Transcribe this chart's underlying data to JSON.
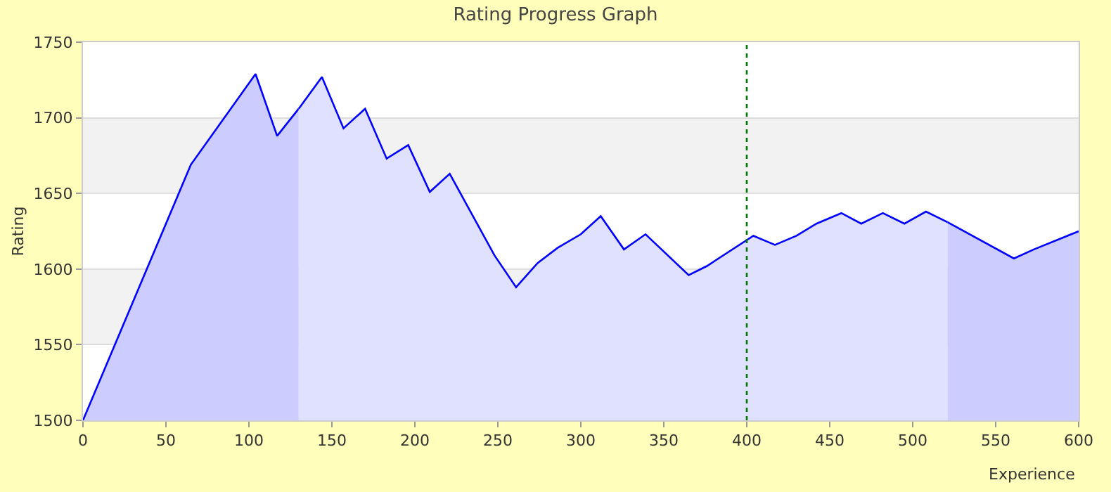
{
  "chart_data": {
    "type": "area",
    "title": "Rating Progress Graph",
    "xlabel": "Experience",
    "ylabel": "Rating",
    "series": [
      {
        "color": "#ccccff",
        "x": [
          0,
          65,
          104,
          117,
          130
        ],
        "values": [
          1500,
          1669,
          1729,
          1688,
          1706
        ]
      },
      {
        "color": "#e0e0ff",
        "x": [
          130,
          144,
          157,
          170,
          183,
          196,
          209,
          221,
          248,
          261,
          274,
          286,
          300,
          312,
          326,
          339,
          365,
          376,
          404,
          417,
          430,
          442,
          457,
          469,
          482,
          495,
          508,
          521
        ],
        "values": [
          1706,
          1727,
          1693,
          1706,
          1673,
          1682,
          1651,
          1663,
          1609,
          1588,
          1604,
          1614,
          1623,
          1635,
          1613,
          1623,
          1596,
          1602,
          1622,
          1616,
          1622,
          1630,
          1637,
          1630,
          1637,
          1630,
          1638,
          1631
        ]
      },
      {
        "color": "#ccccff",
        "x": [
          521,
          561,
          573,
          600
        ],
        "values": [
          1631,
          1607,
          1613,
          1625
        ]
      }
    ],
    "xlim": [
      0,
      600
    ],
    "xticks": [
      0,
      50,
      100,
      150,
      200,
      250,
      300,
      350,
      400,
      450,
      500,
      550,
      600
    ],
    "ylim": [
      1500,
      1750
    ],
    "yticks": [
      1500,
      1550,
      1600,
      1650,
      1700,
      1750
    ],
    "ref_lines": [
      {
        "axis": "x",
        "value": 400,
        "color": "#007700",
        "line_style": "dotted"
      }
    ],
    "bands": [
      {
        "axis": "y",
        "from": 1650,
        "to": 1700,
        "color": "#f2f2f2"
      },
      {
        "axis": "y",
        "from": 1550,
        "to": 1600,
        "color": "#f2f2f2"
      }
    ],
    "grid": "y"
  }
}
